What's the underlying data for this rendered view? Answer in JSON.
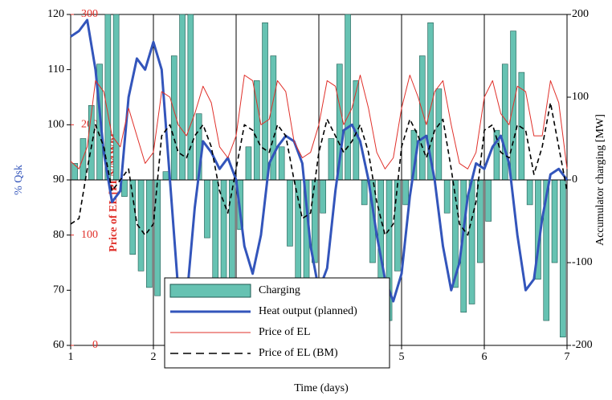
{
  "chart_data": {
    "type": "combo",
    "x_label": "Time (days)",
    "y_label": "% Qsk",
    "y2_label": "Accumulator charging [MW]",
    "y3_label": "Price of EL [PLN/MWh]",
    "xlim": [
      1,
      7
    ],
    "xticks": [
      1,
      2,
      3,
      4,
      5,
      6,
      7
    ],
    "ylim": [
      60,
      120
    ],
    "yticks": [
      60,
      70,
      80,
      90,
      100,
      110,
      120
    ],
    "y2lim": [
      -200,
      200
    ],
    "y2ticks": [
      -200,
      -100,
      0,
      100,
      200
    ],
    "y3lim": [
      0,
      300
    ],
    "y3ticks": [
      0,
      100,
      200,
      300
    ],
    "grid": "x",
    "series": [
      {
        "name": "Charging",
        "kind": "bar",
        "axis": "y2",
        "color": "#66c2b2",
        "x": [
          1.05,
          1.15,
          1.25,
          1.35,
          1.45,
          1.55,
          1.65,
          1.75,
          1.85,
          1.95,
          2.05,
          2.15,
          2.25,
          2.35,
          2.45,
          2.55,
          2.65,
          2.75,
          2.85,
          2.95,
          3.05,
          3.15,
          3.25,
          3.35,
          3.45,
          3.55,
          3.65,
          3.75,
          3.85,
          3.95,
          4.05,
          4.15,
          4.25,
          4.35,
          4.45,
          4.55,
          4.65,
          4.75,
          4.85,
          4.95,
          5.05,
          5.15,
          5.25,
          5.35,
          5.45,
          5.55,
          5.65,
          5.75,
          5.85,
          5.95,
          6.05,
          6.15,
          6.25,
          6.35,
          6.45,
          6.55,
          6.65,
          6.75,
          6.85,
          6.95
        ],
        "values": [
          20,
          50,
          90,
          140,
          200,
          200,
          -20,
          -90,
          -110,
          -130,
          -140,
          10,
          150,
          200,
          200,
          80,
          -70,
          -120,
          -140,
          -120,
          -60,
          40,
          120,
          190,
          150,
          40,
          -80,
          -130,
          -120,
          -100,
          -40,
          50,
          140,
          200,
          120,
          -30,
          -100,
          -150,
          -170,
          -110,
          -30,
          60,
          150,
          190,
          110,
          -40,
          -130,
          -160,
          -150,
          -100,
          -50,
          60,
          140,
          180,
          130,
          -30,
          -120,
          -170,
          -100,
          -190
        ]
      },
      {
        "name": "Heat output (planned)",
        "kind": "line",
        "axis": "y",
        "color": "#3355bb",
        "width": 3,
        "x": [
          1,
          1.1,
          1.2,
          1.3,
          1.4,
          1.5,
          1.6,
          1.7,
          1.8,
          1.9,
          2,
          2.1,
          2.2,
          2.3,
          2.4,
          2.5,
          2.6,
          2.7,
          2.8,
          2.9,
          3,
          3.1,
          3.2,
          3.3,
          3.4,
          3.5,
          3.6,
          3.7,
          3.8,
          3.9,
          4,
          4.1,
          4.2,
          4.3,
          4.4,
          4.5,
          4.6,
          4.7,
          4.8,
          4.9,
          5,
          5.1,
          5.2,
          5.3,
          5.4,
          5.5,
          5.6,
          5.7,
          5.8,
          5.9,
          6,
          6.1,
          6.2,
          6.3,
          6.4,
          6.5,
          6.6,
          6.7,
          6.8,
          6.9,
          7
        ],
        "values": [
          116,
          117,
          119,
          110,
          95,
          86,
          88,
          105,
          112,
          110,
          115,
          110,
          90,
          70,
          68,
          85,
          97,
          95,
          92,
          94,
          90,
          78,
          73,
          80,
          93,
          96,
          98,
          97,
          93,
          78,
          70,
          74,
          88,
          99,
          100,
          97,
          90,
          80,
          72,
          68,
          73,
          87,
          97,
          98,
          90,
          78,
          70,
          75,
          87,
          93,
          92,
          96,
          98,
          93,
          80,
          70,
          72,
          83,
          91,
          92,
          90
        ]
      },
      {
        "name": "Price of EL",
        "kind": "line",
        "axis": "y3",
        "color": "#e0302a",
        "width": 1,
        "x": [
          1,
          1.1,
          1.2,
          1.3,
          1.4,
          1.5,
          1.6,
          1.7,
          1.8,
          1.9,
          2,
          2.1,
          2.2,
          2.3,
          2.4,
          2.5,
          2.6,
          2.7,
          2.8,
          2.9,
          3,
          3.1,
          3.2,
          3.3,
          3.4,
          3.5,
          3.6,
          3.7,
          3.8,
          3.9,
          4,
          4.1,
          4.2,
          4.3,
          4.4,
          4.5,
          4.6,
          4.7,
          4.8,
          4.9,
          5,
          5.1,
          5.2,
          5.3,
          5.4,
          5.5,
          5.6,
          5.7,
          5.8,
          5.9,
          6,
          6.1,
          6.2,
          6.3,
          6.4,
          6.5,
          6.6,
          6.7,
          6.8,
          6.9,
          7
        ],
        "values": [
          167,
          160,
          180,
          240,
          230,
          190,
          180,
          215,
          190,
          165,
          175,
          230,
          225,
          200,
          190,
          210,
          235,
          220,
          180,
          170,
          190,
          245,
          240,
          200,
          205,
          240,
          230,
          185,
          170,
          175,
          200,
          240,
          235,
          200,
          215,
          245,
          215,
          175,
          160,
          170,
          215,
          245,
          225,
          200,
          230,
          240,
          200,
          165,
          160,
          175,
          225,
          240,
          210,
          200,
          235,
          230,
          190,
          190,
          240,
          220,
          160
        ]
      },
      {
        "name": "Price of EL (BM)",
        "kind": "line",
        "axis": "y3",
        "color": "#000000",
        "width": 1.6,
        "dashed": true,
        "x": [
          1,
          1.1,
          1.2,
          1.3,
          1.4,
          1.5,
          1.6,
          1.7,
          1.8,
          1.9,
          2,
          2.1,
          2.2,
          2.3,
          2.4,
          2.5,
          2.6,
          2.7,
          2.8,
          2.9,
          3,
          3.1,
          3.2,
          3.3,
          3.4,
          3.5,
          3.6,
          3.7,
          3.8,
          3.9,
          4,
          4.1,
          4.2,
          4.3,
          4.4,
          4.5,
          4.6,
          4.7,
          4.8,
          4.9,
          5,
          5.1,
          5.2,
          5.3,
          5.4,
          5.5,
          5.6,
          5.7,
          5.8,
          5.9,
          6,
          6.1,
          6.2,
          6.3,
          6.4,
          6.5,
          6.6,
          6.7,
          6.8,
          6.9,
          7
        ],
        "values": [
          110,
          115,
          160,
          200,
          180,
          140,
          150,
          160,
          110,
          100,
          110,
          190,
          200,
          175,
          170,
          190,
          200,
          180,
          140,
          120,
          160,
          200,
          195,
          180,
          175,
          200,
          190,
          150,
          115,
          120,
          175,
          205,
          190,
          175,
          185,
          200,
          175,
          130,
          100,
          110,
          180,
          205,
          190,
          170,
          195,
          205,
          160,
          110,
          100,
          130,
          195,
          200,
          175,
          170,
          200,
          195,
          155,
          180,
          220,
          180,
          140
        ]
      }
    ]
  }
}
